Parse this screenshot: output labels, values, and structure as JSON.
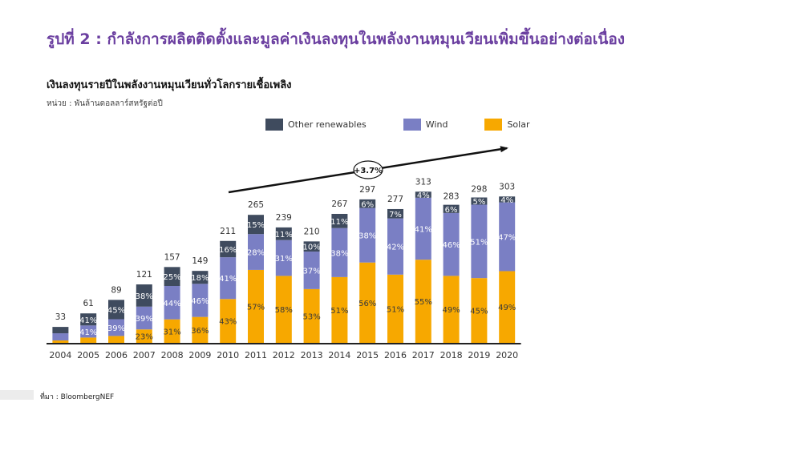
{
  "figure_title": "รูปที่ 2 : กำลังการผลิตติดตั้งและมูลค่าเงินลงทุนในพลังงานหมุนเวียนเพิ่มขึ้นอย่างต่อเนื่อง",
  "unit_note": "หน่วย : พันล้านดอลลาร์สหรัฐต่อปี",
  "source_note": "ที่มา : BloombergNEF",
  "colors": {
    "other": "#3f4b5e",
    "wind": "#7a7fc4",
    "solar": "#f7a800",
    "axis": "#222222",
    "trend": "#111111"
  },
  "chart_data": {
    "type": "bar",
    "stacked": true,
    "title": "เงินลงทุนรายปีในพลังงานหมุนเวียนทั่วโลกรายเชื้อเพลิง",
    "xlabel": "",
    "ylabel": "",
    "ylim": [
      0,
      330
    ],
    "grid": false,
    "legend_position": "top",
    "categories": [
      "2004",
      "2005",
      "2006",
      "2007",
      "2008",
      "2009",
      "2010",
      "2011",
      "2012",
      "2013",
      "2014",
      "2015",
      "2016",
      "2017",
      "2018",
      "2019",
      "2020"
    ],
    "totals": [
      33,
      61,
      89,
      121,
      157,
      149,
      211,
      265,
      239,
      210,
      267,
      297,
      277,
      313,
      283,
      298,
      303
    ],
    "series": [
      {
        "name": "Solar",
        "key": "solar",
        "share_pct": [
          15,
          18,
          16,
          23,
          31,
          36,
          43,
          57,
          58,
          53,
          51,
          56,
          51,
          55,
          49,
          45,
          49
        ],
        "labels": [
          "",
          "",
          "",
          "23%",
          "31%",
          "36%",
          "43%",
          "57%",
          "58%",
          "53%",
          "51%",
          "56%",
          "51%",
          "55%",
          "49%",
          "45%",
          "49%"
        ]
      },
      {
        "name": "Wind",
        "key": "wind",
        "share_pct": [
          45,
          41,
          39,
          39,
          44,
          46,
          41,
          28,
          31,
          37,
          38,
          38,
          42,
          41,
          46,
          51,
          47
        ],
        "labels": [
          "",
          "41%",
          "39%",
          "39%",
          "44%",
          "46%",
          "41%",
          "28%",
          "31%",
          "37%",
          "38%",
          "38%",
          "42%",
          "41%",
          "46%",
          "51%",
          "47%"
        ]
      },
      {
        "name": "Other renewables",
        "key": "other",
        "share_pct": [
          40,
          41,
          45,
          38,
          25,
          18,
          16,
          15,
          11,
          10,
          11,
          6,
          7,
          4,
          6,
          5,
          4
        ],
        "labels": [
          "",
          "41%",
          "45%",
          "38%",
          "25%",
          "18%",
          "16%",
          "15%",
          "11%",
          "10%",
          "11%",
          "6%",
          "7%",
          "4%",
          "6%",
          "5%",
          "4%"
        ]
      }
    ],
    "legend_order": [
      "other",
      "wind",
      "solar"
    ],
    "annotation": {
      "text": "+3.7%"
    }
  }
}
